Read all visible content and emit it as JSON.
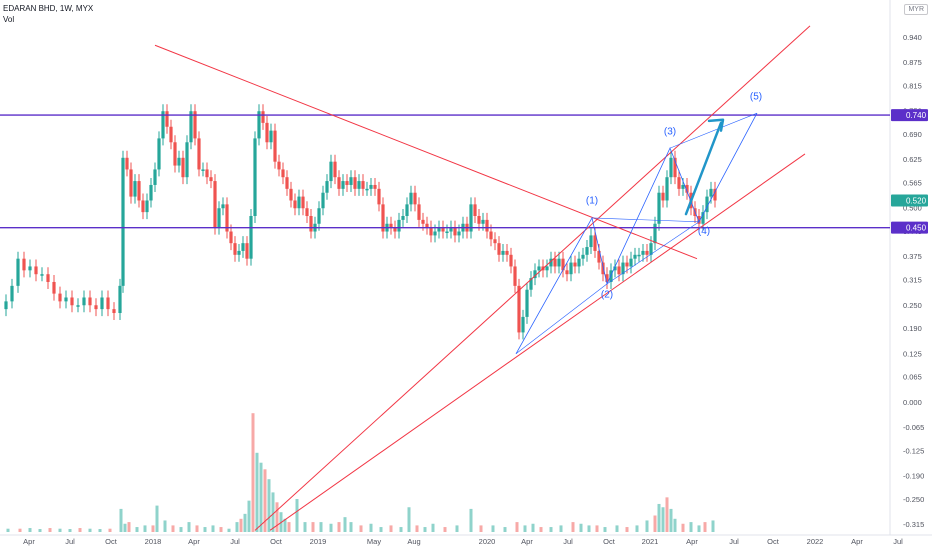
{
  "header": {
    "symbol_line": "EDARAN BHD, 1W, MYX",
    "vol_label": "Vol"
  },
  "currency": "MYR",
  "colors": {
    "up": "#26a69a",
    "down": "#ef5350",
    "up_vol": "#8fd3cb",
    "down_vol": "#f7a9a7",
    "trend": "#f23645",
    "hline": "#5b2fc9",
    "wave": "#2962ff",
    "arrow": "#2196c9"
  },
  "chart_data": {
    "type": "candlestick",
    "title": "EDARAN BHD, 1W, MYX",
    "currency": "MYR",
    "ylim": [
      -0.33,
      0.97
    ],
    "y_ticks": [
      "0.940",
      "0.875",
      "0.815",
      "0.750",
      "0.690",
      "0.625",
      "0.565",
      "0.500",
      "0.440",
      "0.375",
      "0.315",
      "0.250",
      "0.190",
      "0.125",
      "0.065",
      "0.000",
      "-0.065",
      "-0.125",
      "-0.190",
      "-0.250",
      "-0.315"
    ],
    "x_ticks": [
      "Apr",
      "Jul",
      "Oct",
      "2018",
      "Apr",
      "Jul",
      "Oct",
      "2019",
      "May",
      "Aug",
      "2020",
      "Apr",
      "Jul",
      "Oct",
      "2021",
      "Apr",
      "Jul",
      "Oct",
      "2022",
      "Apr",
      "Jul"
    ],
    "price_labels": [
      {
        "text": "0.740",
        "value": 0.74,
        "color": "#5b2fc9"
      },
      {
        "text": "0.520",
        "value": 0.52,
        "color": "#26a69a"
      },
      {
        "text": "0.450",
        "value": 0.45,
        "color": "#5b2fc9"
      }
    ],
    "horizontal_lines": [
      0.74,
      0.45
    ],
    "wave_labels": [
      "(1)",
      "(2)",
      "(3)",
      "(4)",
      "(5)"
    ],
    "price_path": [
      [
        0,
        0.24
      ],
      [
        6,
        0.26
      ],
      [
        12,
        0.3
      ],
      [
        18,
        0.37
      ],
      [
        24,
        0.34
      ],
      [
        30,
        0.35
      ],
      [
        36,
        0.33
      ],
      [
        42,
        0.33
      ],
      [
        48,
        0.31
      ],
      [
        54,
        0.28
      ],
      [
        60,
        0.26
      ],
      [
        66,
        0.27
      ],
      [
        72,
        0.25
      ],
      [
        78,
        0.25
      ],
      [
        84,
        0.27
      ],
      [
        90,
        0.25
      ],
      [
        96,
        0.24
      ],
      [
        102,
        0.27
      ],
      [
        108,
        0.24
      ],
      [
        114,
        0.23
      ],
      [
        120,
        0.3
      ],
      [
        123,
        0.63
      ],
      [
        127,
        0.6
      ],
      [
        131,
        0.53
      ],
      [
        135,
        0.57
      ],
      [
        139,
        0.52
      ],
      [
        143,
        0.49
      ],
      [
        147,
        0.52
      ],
      [
        151,
        0.56
      ],
      [
        155,
        0.6
      ],
      [
        159,
        0.68
      ],
      [
        163,
        0.75
      ],
      [
        167,
        0.71
      ],
      [
        171,
        0.67
      ],
      [
        175,
        0.61
      ],
      [
        179,
        0.63
      ],
      [
        183,
        0.58
      ],
      [
        187,
        0.67
      ],
      [
        191,
        0.75
      ],
      [
        195,
        0.68
      ],
      [
        199,
        0.6
      ],
      [
        203,
        0.6
      ],
      [
        207,
        0.58
      ],
      [
        211,
        0.57
      ],
      [
        215,
        0.45
      ],
      [
        219,
        0.5
      ],
      [
        223,
        0.51
      ],
      [
        227,
        0.44
      ],
      [
        231,
        0.41
      ],
      [
        235,
        0.38
      ],
      [
        239,
        0.39
      ],
      [
        243,
        0.41
      ],
      [
        247,
        0.37
      ],
      [
        251,
        0.48
      ],
      [
        255,
        0.68
      ],
      [
        259,
        0.75
      ],
      [
        263,
        0.72
      ],
      [
        267,
        0.67
      ],
      [
        271,
        0.7
      ],
      [
        275,
        0.62
      ],
      [
        279,
        0.6
      ],
      [
        283,
        0.58
      ],
      [
        287,
        0.55
      ],
      [
        291,
        0.52
      ],
      [
        295,
        0.5
      ],
      [
        299,
        0.53
      ],
      [
        303,
        0.5
      ],
      [
        307,
        0.48
      ],
      [
        311,
        0.44
      ],
      [
        315,
        0.46
      ],
      [
        319,
        0.5
      ],
      [
        323,
        0.54
      ],
      [
        327,
        0.57
      ],
      [
        331,
        0.62
      ],
      [
        335,
        0.58
      ],
      [
        339,
        0.55
      ],
      [
        343,
        0.57
      ],
      [
        347,
        0.56
      ],
      [
        351,
        0.58
      ],
      [
        355,
        0.55
      ],
      [
        359,
        0.57
      ],
      [
        363,
        0.55
      ],
      [
        367,
        0.55
      ],
      [
        371,
        0.56
      ],
      [
        375,
        0.55
      ],
      [
        379,
        0.51
      ],
      [
        383,
        0.44
      ],
      [
        387,
        0.46
      ],
      [
        391,
        0.45
      ],
      [
        395,
        0.44
      ],
      [
        399,
        0.47
      ],
      [
        403,
        0.48
      ],
      [
        407,
        0.51
      ],
      [
        411,
        0.54
      ],
      [
        415,
        0.51
      ],
      [
        419,
        0.47
      ],
      [
        423,
        0.46
      ],
      [
        427,
        0.45
      ],
      [
        431,
        0.43
      ],
      [
        435,
        0.44
      ],
      [
        439,
        0.45
      ],
      [
        443,
        0.44
      ],
      [
        447,
        0.44
      ],
      [
        451,
        0.45
      ],
      [
        455,
        0.43
      ],
      [
        459,
        0.44
      ],
      [
        463,
        0.46
      ],
      [
        467,
        0.44
      ],
      [
        471,
        0.51
      ],
      [
        475,
        0.48
      ],
      [
        479,
        0.46
      ],
      [
        483,
        0.47
      ],
      [
        487,
        0.44
      ],
      [
        491,
        0.42
      ],
      [
        495,
        0.41
      ],
      [
        499,
        0.38
      ],
      [
        503,
        0.39
      ],
      [
        507,
        0.38
      ],
      [
        511,
        0.35
      ],
      [
        515,
        0.3
      ],
      [
        519,
        0.18
      ],
      [
        523,
        0.22
      ],
      [
        527,
        0.29
      ],
      [
        531,
        0.32
      ],
      [
        535,
        0.34
      ],
      [
        539,
        0.35
      ],
      [
        543,
        0.34
      ],
      [
        547,
        0.35
      ],
      [
        551,
        0.37
      ],
      [
        555,
        0.35
      ],
      [
        559,
        0.37
      ],
      [
        563,
        0.34
      ],
      [
        567,
        0.33
      ],
      [
        571,
        0.36
      ],
      [
        575,
        0.35
      ],
      [
        579,
        0.37
      ],
      [
        583,
        0.38
      ],
      [
        587,
        0.4
      ],
      [
        591,
        0.43
      ],
      [
        595,
        0.39
      ],
      [
        599,
        0.36
      ],
      [
        603,
        0.33
      ],
      [
        607,
        0.31
      ],
      [
        611,
        0.34
      ],
      [
        615,
        0.35
      ],
      [
        619,
        0.33
      ],
      [
        623,
        0.36
      ],
      [
        627,
        0.35
      ],
      [
        631,
        0.37
      ],
      [
        635,
        0.38
      ],
      [
        639,
        0.38
      ],
      [
        643,
        0.39
      ],
      [
        647,
        0.38
      ],
      [
        651,
        0.41
      ],
      [
        655,
        0.46
      ],
      [
        659,
        0.54
      ],
      [
        663,
        0.52
      ],
      [
        667,
        0.58
      ],
      [
        671,
        0.63
      ],
      [
        675,
        0.58
      ],
      [
        679,
        0.55
      ],
      [
        683,
        0.56
      ],
      [
        687,
        0.54
      ],
      [
        691,
        0.5
      ],
      [
        695,
        0.48
      ],
      [
        699,
        0.46
      ],
      [
        703,
        0.49
      ],
      [
        707,
        0.53
      ],
      [
        711,
        0.55
      ],
      [
        715,
        0.52
      ]
    ],
    "volume": [
      [
        8,
        0.1
      ],
      [
        20,
        0.1
      ],
      [
        30,
        0.12
      ],
      [
        40,
        0.09
      ],
      [
        50,
        0.12
      ],
      [
        60,
        0.1
      ],
      [
        70,
        0.09
      ],
      [
        80,
        0.12
      ],
      [
        90,
        0.1
      ],
      [
        100,
        0.09
      ],
      [
        110,
        0.1
      ],
      [
        121,
        0.7
      ],
      [
        125,
        0.25
      ],
      [
        129,
        0.3
      ],
      [
        137,
        0.15
      ],
      [
        145,
        0.2
      ],
      [
        153,
        0.2
      ],
      [
        157,
        0.8
      ],
      [
        165,
        0.35
      ],
      [
        173,
        0.2
      ],
      [
        181,
        0.15
      ],
      [
        189,
        0.3
      ],
      [
        197,
        0.2
      ],
      [
        205,
        0.15
      ],
      [
        213,
        0.2
      ],
      [
        221,
        0.15
      ],
      [
        229,
        0.1
      ],
      [
        237,
        0.3
      ],
      [
        241,
        0.4
      ],
      [
        245,
        0.55
      ],
      [
        249,
        0.95
      ],
      [
        253,
        3.6
      ],
      [
        257,
        2.4
      ],
      [
        261,
        2.1
      ],
      [
        265,
        1.9
      ],
      [
        269,
        1.6
      ],
      [
        273,
        1.2
      ],
      [
        277,
        0.9
      ],
      [
        281,
        0.6
      ],
      [
        285,
        0.4
      ],
      [
        289,
        0.3
      ],
      [
        297,
        1.0
      ],
      [
        305,
        0.3
      ],
      [
        313,
        0.3
      ],
      [
        321,
        0.3
      ],
      [
        331,
        0.25
      ],
      [
        339,
        0.3
      ],
      [
        345,
        0.45
      ],
      [
        351,
        0.3
      ],
      [
        361,
        0.2
      ],
      [
        371,
        0.25
      ],
      [
        381,
        0.15
      ],
      [
        391,
        0.2
      ],
      [
        401,
        0.15
      ],
      [
        409,
        0.75
      ],
      [
        417,
        0.2
      ],
      [
        425,
        0.15
      ],
      [
        433,
        0.25
      ],
      [
        445,
        0.15
      ],
      [
        457,
        0.2
      ],
      [
        471,
        0.7
      ],
      [
        481,
        0.2
      ],
      [
        493,
        0.2
      ],
      [
        505,
        0.15
      ],
      [
        517,
        0.3
      ],
      [
        525,
        0.2
      ],
      [
        533,
        0.25
      ],
      [
        541,
        0.15
      ],
      [
        551,
        0.15
      ],
      [
        561,
        0.2
      ],
      [
        573,
        0.3
      ],
      [
        581,
        0.25
      ],
      [
        589,
        0.2
      ],
      [
        597,
        0.2
      ],
      [
        605,
        0.15
      ],
      [
        617,
        0.2
      ],
      [
        627,
        0.15
      ],
      [
        637,
        0.2
      ],
      [
        647,
        0.35
      ],
      [
        655,
        0.5
      ],
      [
        659,
        0.85
      ],
      [
        663,
        0.75
      ],
      [
        667,
        1.05
      ],
      [
        671,
        0.7
      ],
      [
        675,
        0.4
      ],
      [
        683,
        0.25
      ],
      [
        691,
        0.3
      ],
      [
        699,
        0.2
      ],
      [
        705,
        0.3
      ],
      [
        713,
        0.35
      ]
    ]
  }
}
